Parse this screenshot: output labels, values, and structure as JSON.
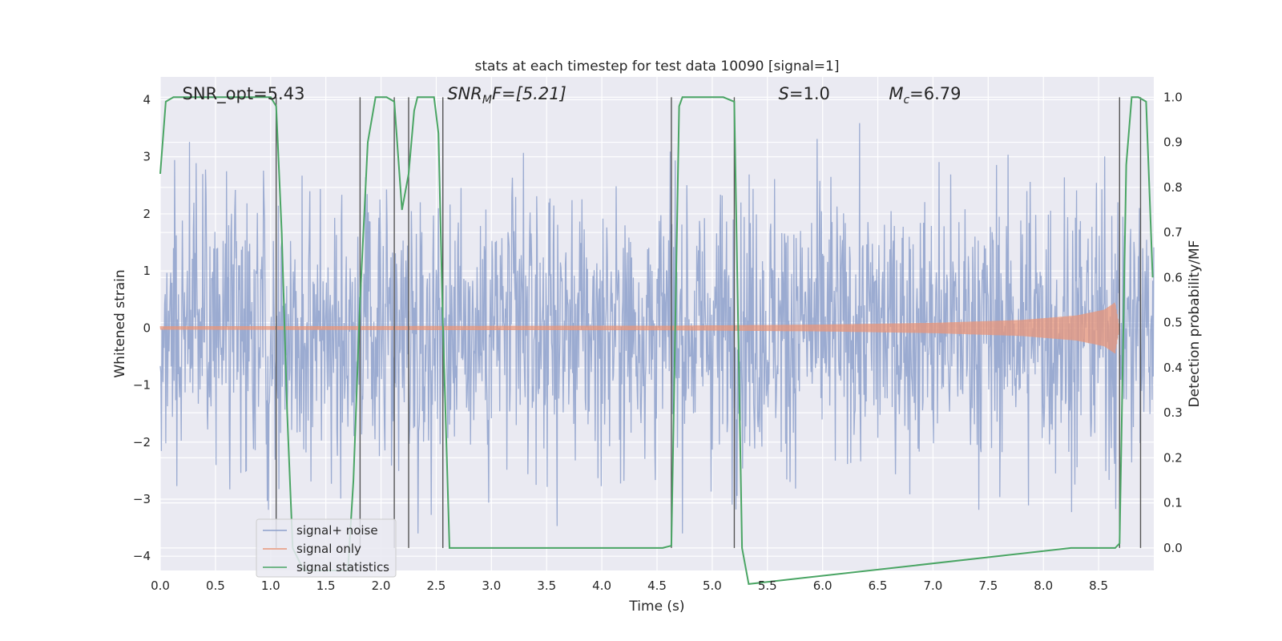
{
  "chart_data": {
    "type": "line",
    "title": "stats at each timestep for test data 10090 [signal=1]",
    "xlabel": "Time (s)",
    "ylabel": "Whitened strain",
    "ylabel_right": "Detection probability/MF",
    "xlim": [
      0.0,
      9.0
    ],
    "ylim": [
      -4.25,
      4.4
    ],
    "ylim_right": [
      -0.05,
      1.045
    ],
    "xticks": [
      "0.0",
      "0.5",
      "1.0",
      "1.5",
      "2.0",
      "2.5",
      "3.0",
      "3.5",
      "4.0",
      "4.5",
      "5.0",
      "5.5",
      "6.0",
      "6.5",
      "7.0",
      "7.5",
      "8.0",
      "8.5"
    ],
    "yticks_left": [
      "−4",
      "−3",
      "−2",
      "−1",
      "0",
      "1",
      "2",
      "3",
      "4"
    ],
    "yticks_right": [
      "0.0",
      "0.1",
      "0.2",
      "0.3",
      "0.4",
      "0.5",
      "0.6",
      "0.7",
      "0.8",
      "0.9",
      "1.0"
    ],
    "grid": true,
    "legend_position": "lower-left",
    "annotations": [
      {
        "text": "SNR_opt=5.43",
        "x": 0.2
      },
      {
        "text": "SNR",
        "sub": "M",
        "tail": "F=[5.21]",
        "x": 2.6,
        "italic": true
      },
      {
        "text": "S",
        "tail": "=1.0",
        "x": 5.6,
        "italic": true
      },
      {
        "text": "M",
        "sub": "c",
        "tail": "=6.79",
        "x": 6.6,
        "italic": true
      }
    ],
    "vlines": [
      1.05,
      1.81,
      2.12,
      2.25,
      2.56,
      4.63,
      5.2,
      8.69,
      8.88
    ],
    "series": [
      {
        "name": "signal+ noise",
        "color": "#8da0cb",
        "axis": "left",
        "noise_amplitude": 1.35,
        "x_range": [
          0.0,
          9.0
        ]
      },
      {
        "name": "signal only",
        "color": "#e8967a",
        "axis": "left",
        "envelope": {
          "x": [
            0.0,
            4.6,
            6.0,
            7.0,
            7.8,
            8.3,
            8.55,
            8.65,
            8.69
          ],
          "amp": [
            0.03,
            0.04,
            0.06,
            0.09,
            0.14,
            0.22,
            0.32,
            0.45,
            0.0
          ]
        }
      },
      {
        "name": "signal statistics",
        "color": "#4aa564",
        "axis": "right",
        "x": [
          0.0,
          0.05,
          0.12,
          0.2,
          1.0,
          1.05,
          1.1,
          1.15,
          1.2,
          1.3,
          1.7,
          1.75,
          1.81,
          1.88,
          1.95,
          2.05,
          2.12,
          2.19,
          2.25,
          2.3,
          2.33,
          2.38,
          2.48,
          2.52,
          2.56,
          2.62,
          2.7,
          4.55,
          4.63,
          4.7,
          4.73,
          5.1,
          5.2,
          5.27,
          5.33,
          8.25,
          8.4,
          8.65,
          8.69,
          8.75,
          8.8,
          8.86,
          8.93,
          8.99
        ],
        "y": [
          0.83,
          0.99,
          1.0,
          1.0,
          1.0,
          0.98,
          0.7,
          0.3,
          0.0,
          -0.05,
          -0.05,
          0.15,
          0.55,
          0.9,
          1.0,
          1.0,
          0.99,
          0.75,
          0.83,
          0.97,
          1.0,
          1.0,
          1.0,
          0.92,
          0.5,
          0.0,
          0.0,
          0.0,
          0.005,
          0.98,
          1.0,
          1.0,
          0.99,
          0.0,
          -0.08,
          0.0,
          0.0,
          0.0,
          0.01,
          0.85,
          1.0,
          1.0,
          0.99,
          0.6
        ]
      }
    ]
  }
}
